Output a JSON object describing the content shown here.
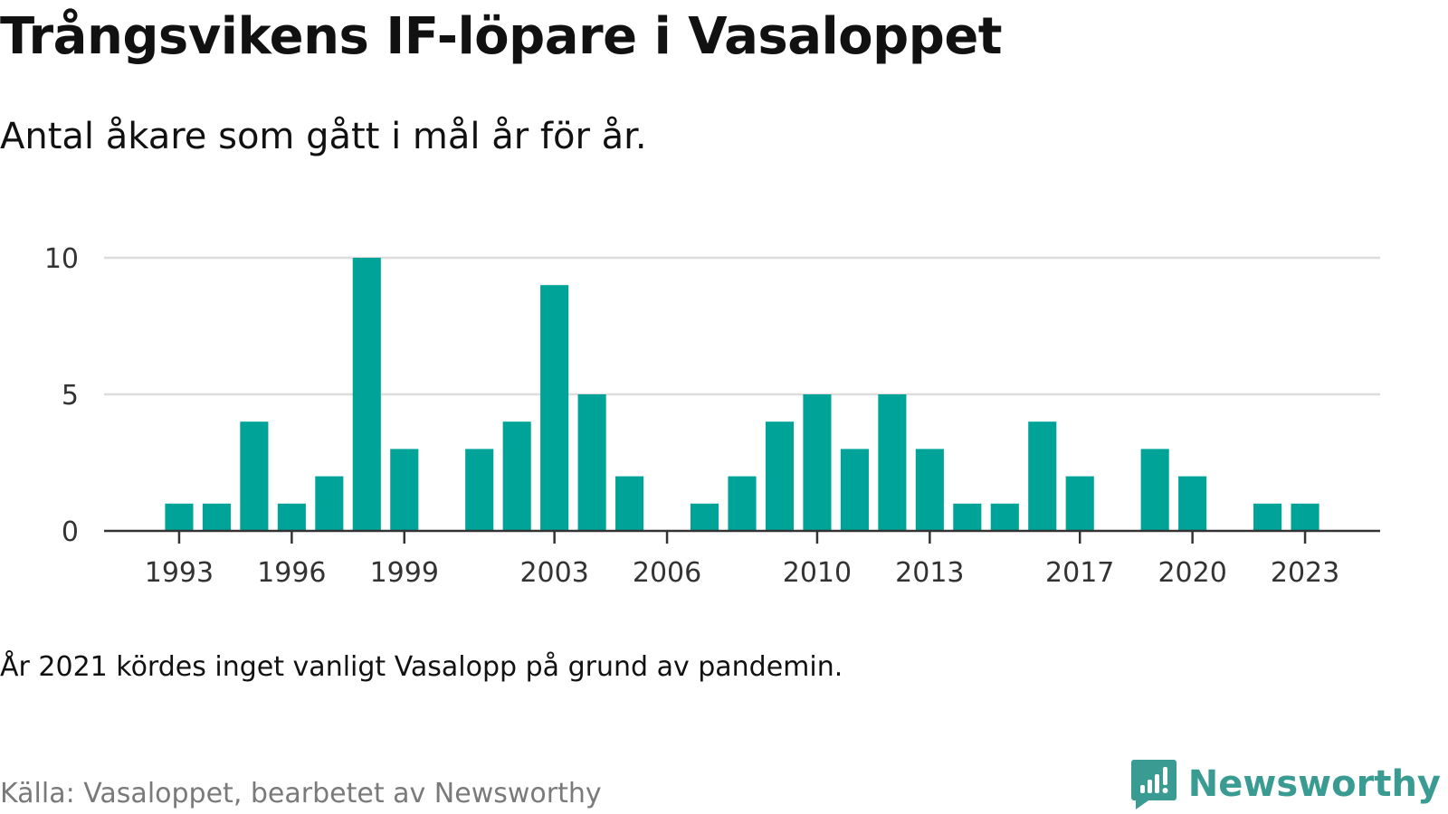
{
  "header": {
    "title": "Trångsvikens IF-löpare i Vasaloppet",
    "subtitle": "Antal åkare som gått i mål år för år."
  },
  "footer": {
    "note": "År 2021 kördes inget vanligt Vasalopp på grund av pandemin.",
    "source": "Källa: Vasaloppet, bearbetet av Newsworthy",
    "brand": "Newsworthy",
    "brand_icon": "newsworthy-logo-icon"
  },
  "colors": {
    "bar": "#00a398",
    "grid": "#dddddd",
    "axis": "#333333",
    "brand": "#3a9b93"
  },
  "chart_data": {
    "type": "bar",
    "title": "Trångsvikens IF-löpare i Vasaloppet",
    "subtitle": "Antal åkare som gått i mål år för år.",
    "xlabel": "",
    "ylabel": "",
    "ylim": [
      0,
      10
    ],
    "xlim": [
      1991,
      2025
    ],
    "grid": true,
    "x": [
      1993,
      1994,
      1995,
      1996,
      1997,
      1998,
      1999,
      2001,
      2002,
      2003,
      2004,
      2005,
      2007,
      2008,
      2009,
      2010,
      2011,
      2012,
      2013,
      2014,
      2015,
      2016,
      2017,
      2019,
      2020,
      2022,
      2023
    ],
    "values": [
      1,
      1,
      4,
      1,
      2,
      10,
      3,
      3,
      4,
      9,
      5,
      2,
      1,
      2,
      4,
      5,
      3,
      5,
      3,
      1,
      1,
      4,
      2,
      3,
      2,
      1,
      1
    ],
    "x_ticks": [
      1993,
      1996,
      1999,
      2003,
      2006,
      2010,
      2013,
      2017,
      2020,
      2023
    ],
    "y_ticks": [
      0,
      5,
      10
    ]
  }
}
